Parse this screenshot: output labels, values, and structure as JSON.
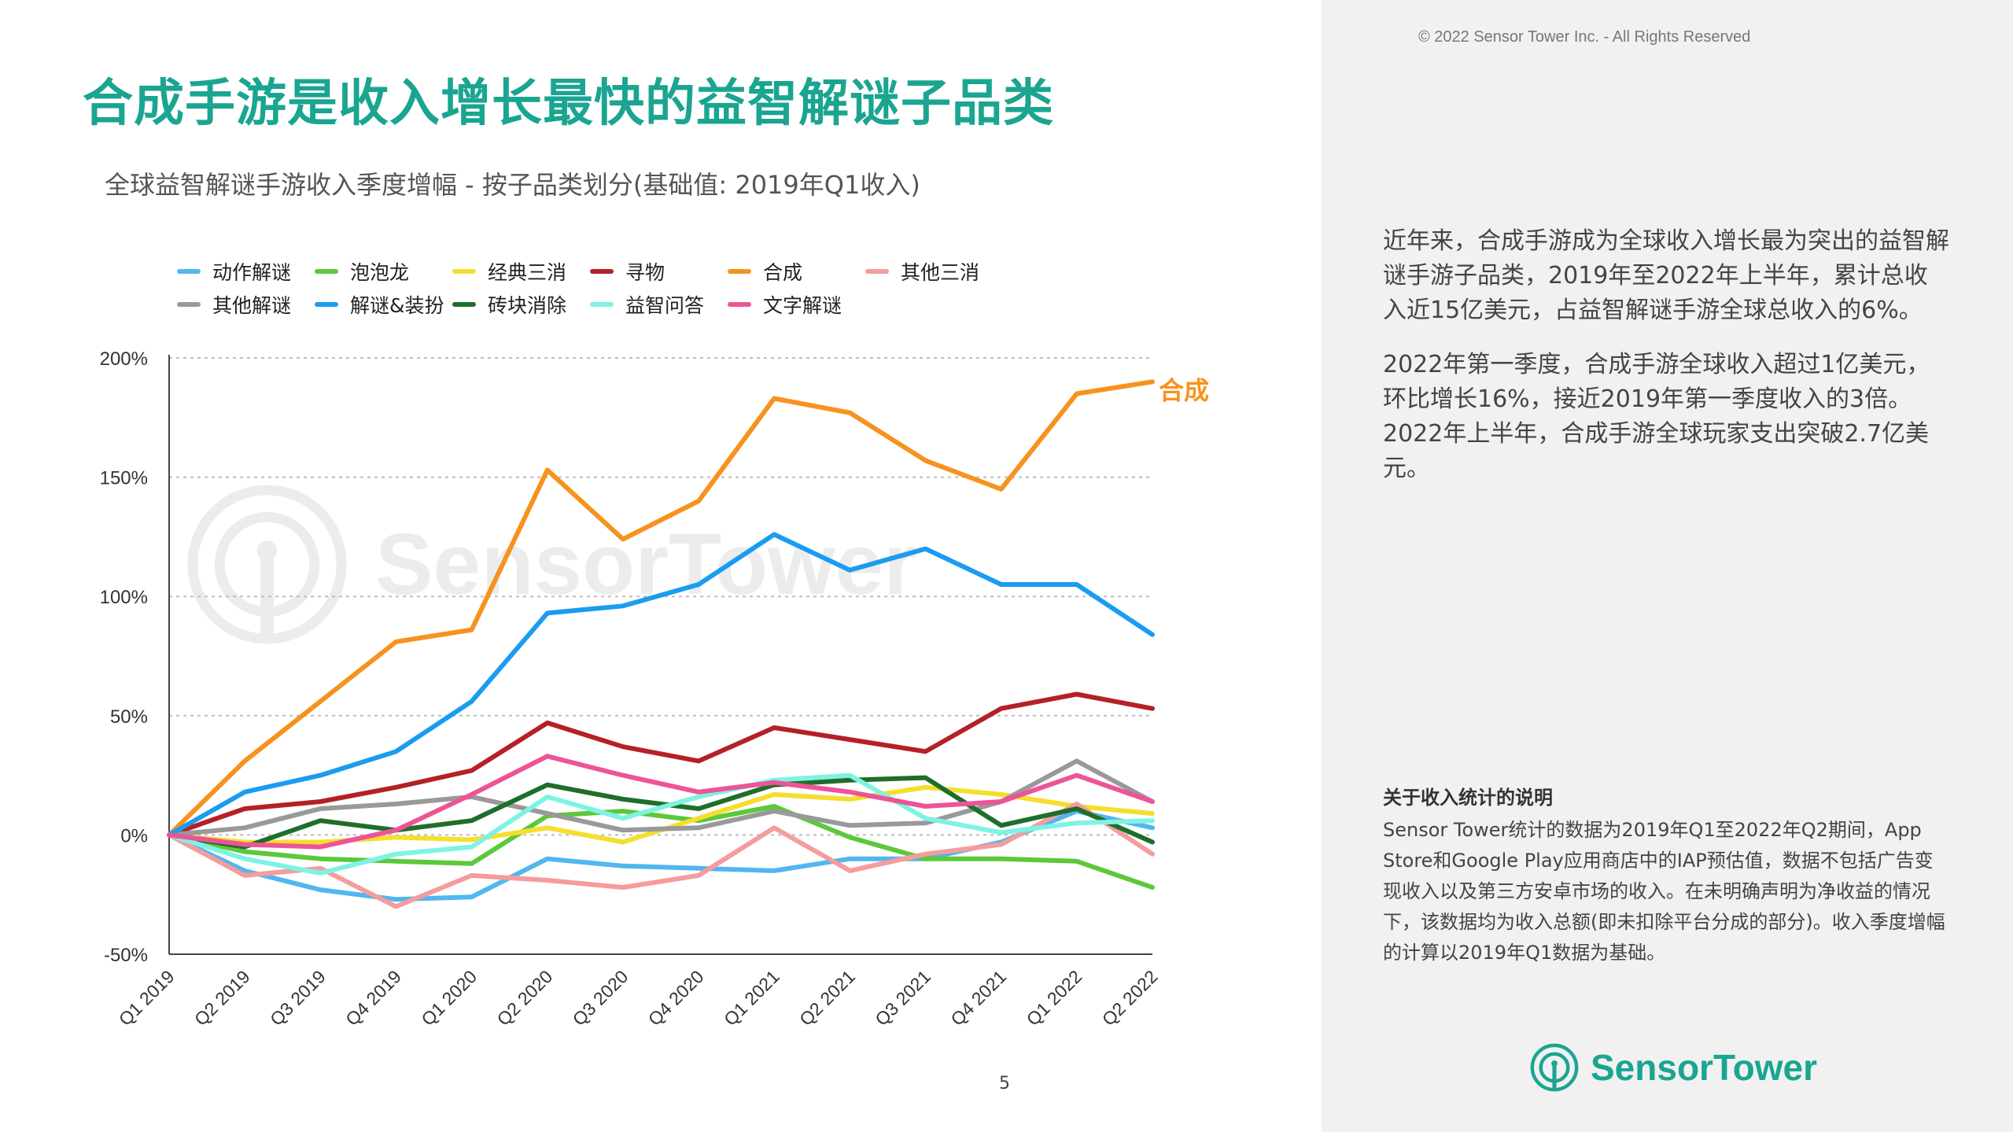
{
  "copyright": "© 2022 Sensor Tower Inc. - All Rights Reserved",
  "title": "合成手游是收入增长最快的益智解谜子品类",
  "watermark": "SensorTower",
  "page_number": "5",
  "description": {
    "p1": "近年来，合成手游成为全球收入增长最为突出的益智解谜手游子品类，2019年至2022年上半年，累计总收入近15亿美元，占益智解谜手游全球总收入的6%。",
    "p2": "2022年第一季度，合成手游全球收入超过1亿美元，环比增长16%，接近2019年第一季度收入的3倍。2022年上半年，合成手游全球玩家支出突破2.7亿美元。"
  },
  "note": {
    "title": "关于收入统计的说明",
    "body": "Sensor Tower统计的数据为2019年Q1至2022年Q2期间，App Store和Google Play应用商店中的IAP预估值，数据不包括广告变现收入以及第三方安卓市场的收入。在未明确声明为净收益的情况下，该数据均为收入总额(即未扣除平台分成的部分)。收入季度增幅的计算以2019年Q1数据为基础。"
  },
  "brand": {
    "name": "SensorTower",
    "color": "#1aa591"
  },
  "chart_data": {
    "type": "line",
    "title": "全球益智解谜手游收入季度增幅 - 按子品类划分(基础值: 2019年Q1收入)",
    "categories": [
      "Q1 2019",
      "Q2 2019",
      "Q3 2019",
      "Q4 2019",
      "Q1 2020",
      "Q2 2020",
      "Q3 2020",
      "Q4 2020",
      "Q1 2021",
      "Q2 2021",
      "Q3 2021",
      "Q4 2021",
      "Q1 2022",
      "Q2 2022"
    ],
    "yticks": [
      "200%",
      "150%",
      "100%",
      "50%",
      "0%",
      "-50%"
    ],
    "ylim": [
      -50,
      200
    ],
    "grid": true,
    "legend_position": "top",
    "annotation": "合成",
    "series": [
      {
        "name": "动作解谜",
        "color": "#52b6ef",
        "values": [
          0,
          -15,
          -23,
          -27,
          -26,
          -10,
          -13,
          -14,
          -15,
          -10,
          -10,
          -3,
          10,
          3
        ]
      },
      {
        "name": "泡泡龙",
        "color": "#5cc83b",
        "values": [
          0,
          -7,
          -10,
          -11,
          -12,
          8,
          10,
          6,
          12,
          -1,
          -10,
          -10,
          -11,
          -22
        ]
      },
      {
        "name": "经典三消",
        "color": "#f5de2e",
        "values": [
          0,
          -3,
          -3,
          -1,
          -2,
          3,
          -3,
          7,
          17,
          15,
          20,
          17,
          12,
          9
        ]
      },
      {
        "name": "寻物",
        "color": "#b52026",
        "values": [
          0,
          11,
          14,
          20,
          27,
          47,
          37,
          31,
          45,
          40,
          35,
          53,
          59,
          53
        ]
      },
      {
        "name": "合成",
        "color": "#f7921e",
        "values": [
          0,
          31,
          56,
          81,
          86,
          153,
          124,
          140,
          183,
          177,
          157,
          145,
          185,
          190
        ]
      },
      {
        "name": "其他三消",
        "color": "#f59c9c",
        "values": [
          0,
          -17,
          -14,
          -30,
          -17,
          -19,
          -22,
          -17,
          3,
          -15,
          -8,
          -4,
          13,
          -8
        ]
      },
      {
        "name": "其他解谜",
        "color": "#999999",
        "values": [
          0,
          3,
          11,
          13,
          16,
          9,
          2,
          3,
          10,
          4,
          5,
          14,
          31,
          14
        ]
      },
      {
        "name": "解谜&装扮",
        "color": "#1a9cf0",
        "values": [
          0,
          18,
          25,
          35,
          56,
          93,
          96,
          105,
          126,
          111,
          120,
          105,
          105,
          84
        ]
      },
      {
        "name": "砖块消除",
        "color": "#1e6e2a",
        "values": [
          0,
          -5,
          6,
          2,
          6,
          21,
          15,
          11,
          21,
          23,
          24,
          4,
          11,
          -3
        ]
      },
      {
        "name": "益智问答",
        "color": "#7ef3e4",
        "values": [
          0,
          -10,
          -16,
          -8,
          -5,
          16,
          7,
          16,
          23,
          25,
          7,
          1,
          5,
          6
        ]
      },
      {
        "name": "文字解谜",
        "color": "#ed5498",
        "values": [
          0,
          -4,
          -5,
          2,
          17,
          33,
          25,
          18,
          22,
          18,
          12,
          14,
          25,
          14
        ]
      }
    ]
  }
}
